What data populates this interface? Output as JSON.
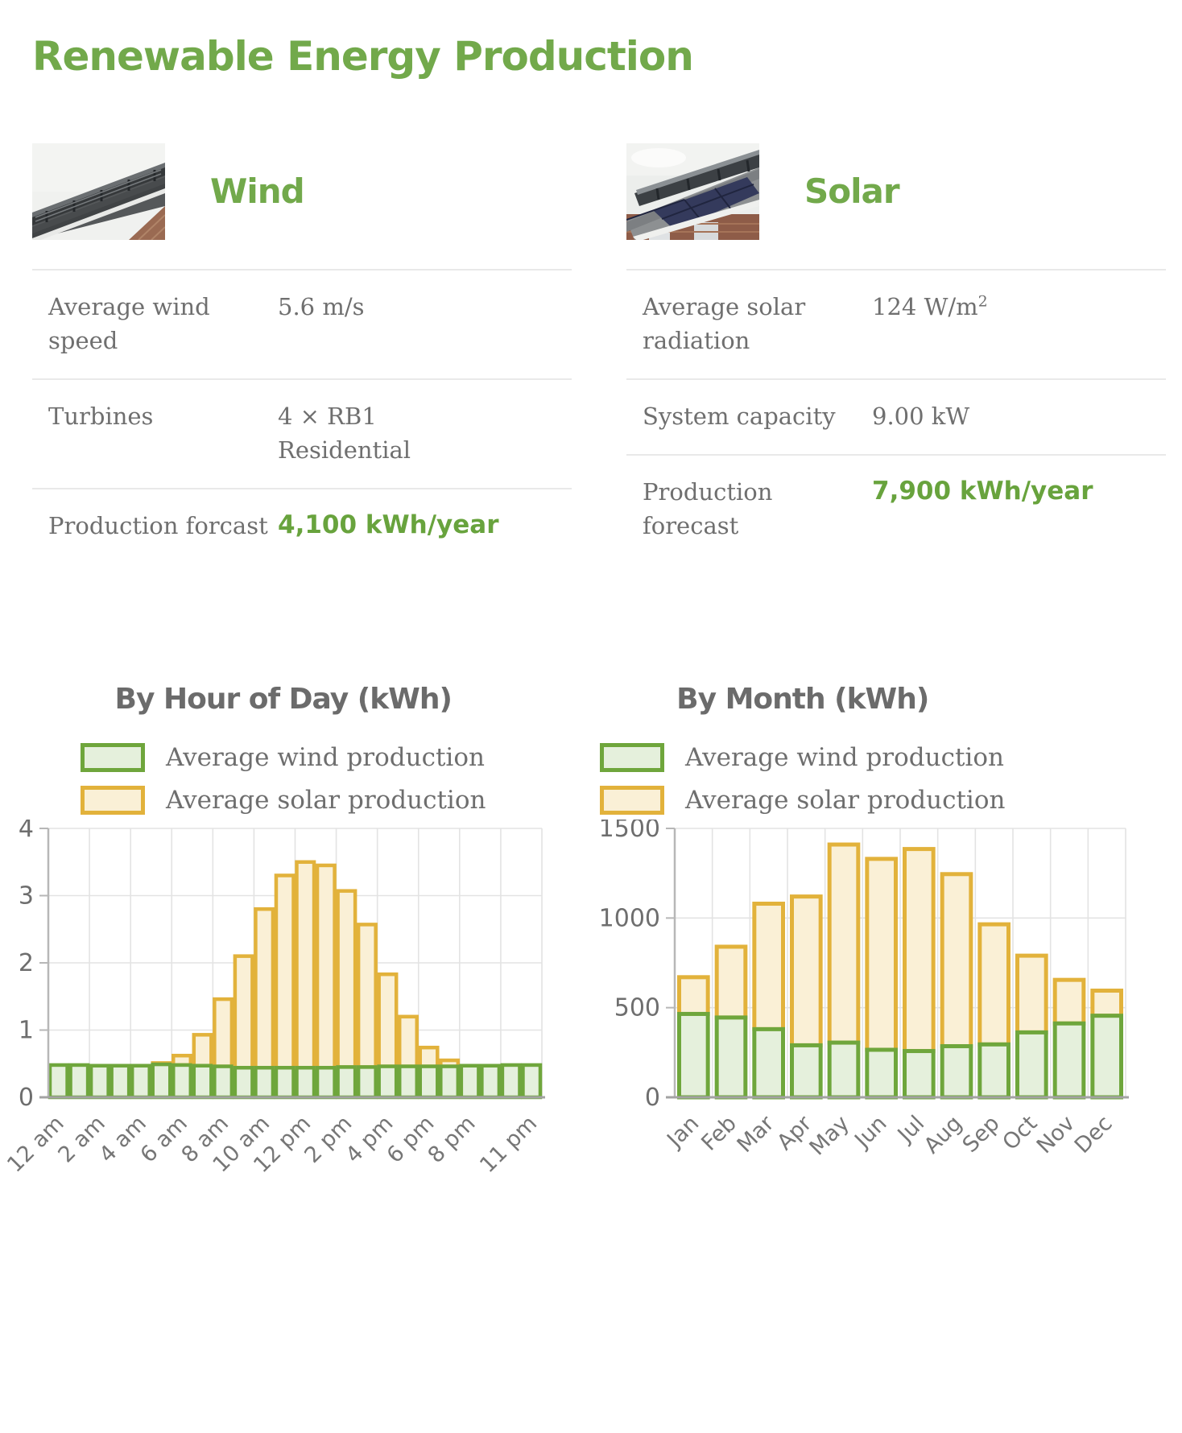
{
  "page": {
    "title": "Renewable Energy Production"
  },
  "colors": {
    "accent_green": "#72a94b",
    "value_green": "#68a33d",
    "wind_bar_fill": "#e5f0dc",
    "wind_bar_border": "#6fa63c",
    "solar_bar_fill": "#faf0d6",
    "solar_bar_border": "#e2b23b",
    "grid_line": "#e3e3e3",
    "axis_line": "#b7b7b7",
    "bottom_axis_line": "#a3a3a3",
    "tick_text": "#6e6e6e",
    "heading_gray": "#6b6b6b"
  },
  "cards": [
    {
      "title": "Wind",
      "image": "wind-roof-ridge-turbines-photo",
      "rows": [
        {
          "label": "Average wind speed",
          "value": "5.6 m/s"
        },
        {
          "label": "Turbines",
          "value": "4 × RB1\nResidential"
        },
        {
          "label": "Production forcast",
          "value": "4,100 kWh/year",
          "highlight": true
        }
      ]
    },
    {
      "title": "Solar",
      "image": "solar-panels-roof-photo",
      "rows": [
        {
          "label": "Average solar radiation",
          "value": "124 W/m",
          "value_sup": "2"
        },
        {
          "label": "System capacity",
          "value": "9.00 kW"
        },
        {
          "label": "Production forecast",
          "value": "7,900 kWh/year",
          "highlight": true
        }
      ]
    }
  ],
  "chart_data": [
    {
      "type": "bar",
      "stacked": true,
      "title": "By Hour of Day (kWh)",
      "xlabel": "",
      "ylabel": "",
      "ylim": [
        0,
        4
      ],
      "y_ticks": [
        0,
        1,
        2,
        3,
        4
      ],
      "grid": true,
      "legend_position": "top",
      "legend": [
        "Average wind production",
        "Average solar production"
      ],
      "categories": [
        "12 am",
        "1 am",
        "2 am",
        "3 am",
        "4 am",
        "5 am",
        "6 am",
        "7 am",
        "8 am",
        "9 am",
        "10 am",
        "11 am",
        "12 pm",
        "1 pm",
        "2 pm",
        "3 pm",
        "4 pm",
        "5 pm",
        "6 pm",
        "7 pm",
        "8 pm",
        "9 pm",
        "10 pm",
        "11 pm"
      ],
      "x_tick_indices": [
        0,
        2,
        4,
        6,
        8,
        10,
        12,
        14,
        16,
        18,
        20,
        23
      ],
      "series": [
        {
          "name": "Average wind production",
          "values": [
            0.48,
            0.48,
            0.47,
            0.47,
            0.47,
            0.49,
            0.48,
            0.47,
            0.46,
            0.44,
            0.44,
            0.44,
            0.44,
            0.44,
            0.45,
            0.45,
            0.46,
            0.46,
            0.46,
            0.46,
            0.47,
            0.47,
            0.48,
            0.48
          ]
        },
        {
          "name": "Average solar production",
          "values": [
            0,
            0,
            0,
            0,
            0,
            0.02,
            0.14,
            0.46,
            1.0,
            1.66,
            2.36,
            2.86,
            3.06,
            3.01,
            2.62,
            2.12,
            1.37,
            0.74,
            0.28,
            0.09,
            0,
            0,
            0,
            0
          ]
        }
      ]
    },
    {
      "type": "bar",
      "stacked": true,
      "title": "By Month (kWh)",
      "xlabel": "",
      "ylabel": "",
      "ylim": [
        0,
        1500
      ],
      "y_ticks": [
        0,
        500,
        1000,
        1500
      ],
      "grid": true,
      "legend_position": "top",
      "legend": [
        "Average wind production",
        "Average solar production"
      ],
      "categories": [
        "Jan",
        "Feb",
        "Mar",
        "Apr",
        "May",
        "Jun",
        "Jul",
        "Aug",
        "Sep",
        "Oct",
        "Nov",
        "Dec"
      ],
      "x_tick_indices": [
        0,
        1,
        2,
        3,
        4,
        5,
        6,
        7,
        8,
        9,
        10,
        11
      ],
      "series": [
        {
          "name": "Average wind production",
          "values": [
            465,
            445,
            380,
            290,
            305,
            265,
            258,
            285,
            295,
            362,
            412,
            455
          ]
        },
        {
          "name": "Average solar production",
          "values": [
            205,
            395,
            700,
            830,
            1105,
            1065,
            1127,
            960,
            670,
            428,
            243,
            140
          ]
        }
      ]
    }
  ]
}
